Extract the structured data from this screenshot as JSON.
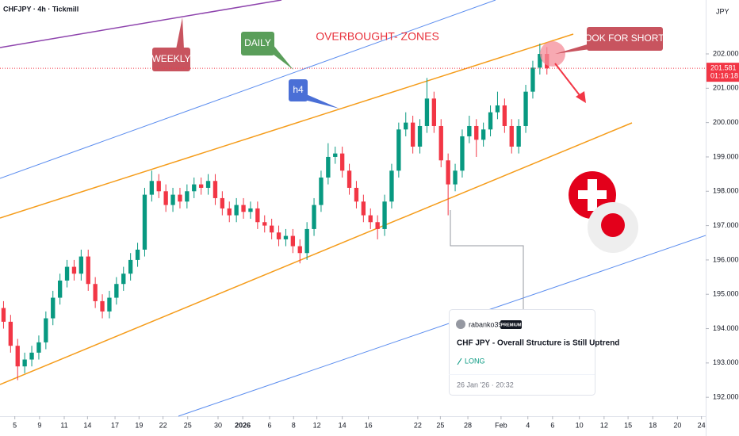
{
  "chart_data": {
    "type": "candlestick",
    "title": "CHFJPY · 4h · Tickmill",
    "currency": "JPY",
    "up_color": "#089981",
    "down_color": "#f23645",
    "xlim": [
      0,
      100
    ],
    "ylim": [
      191.45,
      203.57
    ],
    "x": [
      0.5,
      1.5,
      2.5,
      3.5,
      4.5,
      5.5,
      6.5,
      7.5,
      8.5,
      9.5,
      10.5,
      11.5,
      12.5,
      13.5,
      14.5,
      15.5,
      16.5,
      17.5,
      18.5,
      19.5,
      20.5,
      21.5,
      22.5,
      23.5,
      24.5,
      25.5,
      26.5,
      27.5,
      28.5,
      29.5,
      30.5,
      31.5,
      32.5,
      33.5,
      34.5,
      35.5,
      36.5,
      37.5,
      38.5,
      39.5,
      40.5,
      41.5,
      42.5,
      43.5,
      44.5,
      45.5,
      46.5,
      47.5,
      48.5,
      49.5,
      50.5,
      51.5,
      52.5,
      53.5,
      54.5,
      55.5,
      56.5,
      57.5,
      58.5,
      59.5,
      60.5,
      61.5,
      62.5,
      63.5,
      64.5,
      65.5,
      66.5,
      67.5,
      68.5,
      69.5,
      70.5,
      71.5,
      72.5,
      73.5,
      74.5,
      75.5,
      76.5,
      77.5
    ],
    "open": [
      194.6,
      194.2,
      193.5,
      192.9,
      193.1,
      193.3,
      193.6,
      194.3,
      194.9,
      195.4,
      195.8,
      195.6,
      196.1,
      195.3,
      194.8,
      194.5,
      194.9,
      195.3,
      195.6,
      196.0,
      196.3,
      197.9,
      198.3,
      198.0,
      197.6,
      197.9,
      197.7,
      198.0,
      198.2,
      198.1,
      198.3,
      197.8,
      197.5,
      197.3,
      197.6,
      197.4,
      197.5,
      197.1,
      197.0,
      196.8,
      196.6,
      196.7,
      196.4,
      196.2,
      196.9,
      197.6,
      198.4,
      199.0,
      199.1,
      198.6,
      198.1,
      197.7,
      197.3,
      197.1,
      196.9,
      197.7,
      198.6,
      199.8,
      200.0,
      199.3,
      199.9,
      200.7,
      199.9,
      198.9,
      198.2,
      198.6,
      199.6,
      199.9,
      199.5,
      199.8,
      200.3,
      200.5,
      199.9,
      199.3,
      199.9,
      200.9,
      201.6,
      202.0
    ],
    "high": [
      194.8,
      194.4,
      193.7,
      193.3,
      193.5,
      193.8,
      194.5,
      195.1,
      195.6,
      196.0,
      196.0,
      196.3,
      196.3,
      195.5,
      195.0,
      195.1,
      195.5,
      195.8,
      196.2,
      196.5,
      198.1,
      198.6,
      198.5,
      198.2,
      198.1,
      198.1,
      198.2,
      198.4,
      198.4,
      198.5,
      198.5,
      198.0,
      197.7,
      197.8,
      197.8,
      197.7,
      197.7,
      197.3,
      197.2,
      197.0,
      196.9,
      196.9,
      196.6,
      197.1,
      197.8,
      198.6,
      199.4,
      199.3,
      199.3,
      198.8,
      198.3,
      197.9,
      197.5,
      197.3,
      197.9,
      198.8,
      200.0,
      200.3,
      200.2,
      200.1,
      201.3,
      200.9,
      200.1,
      199.1,
      198.8,
      199.8,
      200.2,
      200.1,
      200.0,
      200.5,
      200.9,
      200.7,
      200.1,
      200.1,
      201.1,
      201.8,
      202.3,
      202.2
    ],
    "low": [
      194.0,
      193.3,
      192.5,
      192.7,
      192.9,
      193.1,
      193.4,
      194.1,
      194.7,
      195.2,
      195.4,
      195.4,
      195.1,
      194.6,
      194.3,
      194.3,
      194.7,
      195.1,
      195.4,
      195.8,
      196.1,
      197.7,
      197.8,
      197.4,
      197.4,
      197.5,
      197.5,
      197.8,
      197.9,
      197.9,
      197.6,
      197.3,
      197.1,
      197.1,
      197.2,
      197.2,
      196.9,
      196.8,
      196.6,
      196.4,
      196.4,
      196.2,
      195.9,
      196.0,
      196.7,
      197.4,
      198.2,
      198.8,
      198.4,
      197.9,
      197.5,
      197.1,
      196.9,
      196.6,
      196.7,
      197.5,
      198.4,
      199.6,
      199.1,
      199.1,
      199.7,
      199.7,
      198.7,
      197.3,
      198.0,
      198.4,
      199.4,
      199.0,
      199.3,
      199.6,
      200.1,
      199.7,
      199.1,
      199.1,
      199.7,
      200.7,
      201.4,
      201.4
    ],
    "close": [
      194.2,
      193.5,
      192.9,
      193.1,
      193.3,
      193.6,
      194.3,
      194.9,
      195.4,
      195.8,
      195.6,
      196.1,
      195.3,
      194.8,
      194.5,
      194.9,
      195.3,
      195.6,
      196.0,
      196.3,
      197.9,
      198.3,
      198.0,
      197.6,
      197.9,
      197.7,
      198.0,
      198.2,
      198.1,
      198.3,
      197.8,
      197.5,
      197.3,
      197.6,
      197.4,
      197.5,
      197.1,
      197.0,
      196.8,
      196.6,
      196.7,
      196.4,
      196.2,
      196.9,
      197.6,
      198.4,
      199.0,
      199.1,
      198.6,
      198.1,
      197.7,
      197.3,
      197.1,
      196.9,
      197.7,
      198.6,
      199.8,
      200.0,
      199.3,
      199.9,
      200.7,
      199.9,
      198.9,
      198.2,
      198.6,
      199.6,
      199.9,
      199.5,
      199.8,
      200.3,
      200.5,
      199.9,
      199.3,
      199.9,
      200.9,
      201.6,
      202.0,
      201.58
    ],
    "yticks": [
      {
        "value": 192,
        "label": "192.000"
      },
      {
        "value": 193,
        "label": "193.000"
      },
      {
        "value": 194,
        "label": "194.000"
      },
      {
        "value": 195,
        "label": "195.000"
      },
      {
        "value": 196,
        "label": "196.000"
      },
      {
        "value": 197,
        "label": "197.000"
      },
      {
        "value": 198,
        "label": "198.000"
      },
      {
        "value": 199,
        "label": "199.000"
      },
      {
        "value": 200,
        "label": "200.000"
      },
      {
        "value": 201,
        "label": "201.000"
      },
      {
        "value": 202,
        "label": "202.000"
      }
    ],
    "xticks": [
      {
        "value": 2.1,
        "label": "5"
      },
      {
        "value": 5.6,
        "label": "9"
      },
      {
        "value": 9.1,
        "label": "11"
      },
      {
        "value": 12.4,
        "label": "14"
      },
      {
        "value": 16.3,
        "label": "17"
      },
      {
        "value": 19.7,
        "label": "19"
      },
      {
        "value": 23.1,
        "label": "22"
      },
      {
        "value": 26.6,
        "label": "25"
      },
      {
        "value": 30.9,
        "label": "30"
      },
      {
        "value": 34.4,
        "label": "2026"
      },
      {
        "value": 38.2,
        "label": "6"
      },
      {
        "value": 41.6,
        "label": "8"
      },
      {
        "value": 44.9,
        "label": "12"
      },
      {
        "value": 48.5,
        "label": "14"
      },
      {
        "value": 52.2,
        "label": "16"
      },
      {
        "value": 59.2,
        "label": "22"
      },
      {
        "value": 62.4,
        "label": "25"
      },
      {
        "value": 66.3,
        "label": "28"
      },
      {
        "value": 71,
        "label": "Feb"
      },
      {
        "value": 74.8,
        "label": "4"
      },
      {
        "value": 78.3,
        "label": "6"
      },
      {
        "value": 82.1,
        "label": "10"
      },
      {
        "value": 85.6,
        "label": "12"
      },
      {
        "value": 89,
        "label": "15"
      },
      {
        "value": 92.5,
        "label": "18"
      },
      {
        "value": 96,
        "label": "20"
      },
      {
        "value": 99.4,
        "label": "24"
      }
    ],
    "last_price": 201.581,
    "countdown": "01:16:18",
    "annotations": {
      "weekly": "WEEKLY",
      "daily": "DAILY",
      "h4": "h4",
      "zones": "OVERBOUGHT- ZONES",
      "shorts": "LOOK FOR SHORTS"
    }
  },
  "idea_card": {
    "author": "rabanko39",
    "badge": "PREMIUM",
    "title": "CHF JPY - Overall Structure is Still Uptrend",
    "direction": "LONG",
    "date": "26 Jan '26 · 20:32"
  }
}
